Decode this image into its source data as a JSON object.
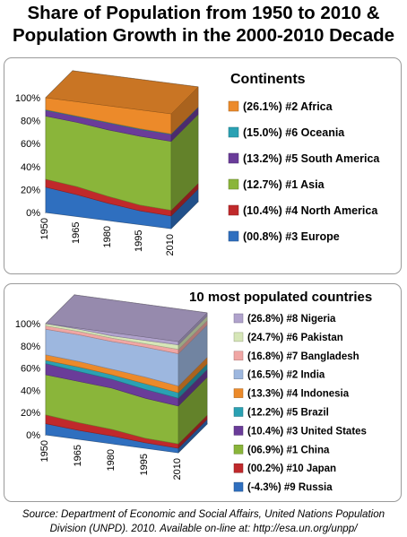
{
  "page": {
    "title_line1": "Share of Population from 1950 to 2010 &",
    "title_line2": "Population Growth in the 2000-2010 Decade",
    "source_line1": "Source: Department of Economic and Social Affairs, United Nations Population",
    "source_line2": "Division (UNPD). 2010. Available on-line at: http://esa.un.org/unpp/"
  },
  "chart_data": [
    {
      "type": "area",
      "title": "Continents",
      "x": [
        "1950",
        "1965",
        "1980",
        "1995",
        "2010"
      ],
      "ylim": [
        0,
        100
      ],
      "yticks": [
        "0%",
        "20%",
        "40%",
        "60%",
        "80%",
        "100%"
      ],
      "grid": true,
      "stacked": "100%",
      "view": "3d",
      "legend_position": "right",
      "series": [
        {
          "name": "#3 Europe",
          "growth": "(00.8%)",
          "color": "#2f6fbf",
          "values": [
            22,
            19,
            15,
            12,
            11
          ]
        },
        {
          "name": "#4 North America",
          "growth": "(10.4%)",
          "color": "#c0292b",
          "values": [
            7,
            7,
            6,
            5,
            5
          ]
        },
        {
          "name": "#1 Asia",
          "growth": "(12.7%)",
          "color": "#8ab53a",
          "values": [
            55,
            56,
            58,
            60,
            60
          ]
        },
        {
          "name": "#5 South America",
          "growth": "(13.2%)",
          "color": "#6a3c99",
          "values": [
            5,
            5,
            6,
            6,
            6
          ]
        },
        {
          "name": "#6 Oceania",
          "growth": "(15.0%)",
          "color": "#2aa1b3",
          "values": [
            0.5,
            0.5,
            0.5,
            0.5,
            0.5
          ]
        },
        {
          "name": "#2 Africa",
          "growth": "(26.1%)",
          "color": "#ec8a2a",
          "values": [
            10.5,
            12.5,
            14.5,
            16.5,
            17.5
          ]
        }
      ]
    },
    {
      "type": "area",
      "title": "10 most populated countries",
      "x": [
        "1950",
        "1965",
        "1980",
        "1995",
        "2010"
      ],
      "ylim": [
        0,
        100
      ],
      "yticks": [
        "0%",
        "20%",
        "40%",
        "60%",
        "80%",
        "100%"
      ],
      "grid": true,
      "stacked": "100%",
      "view": "3d",
      "legend_position": "right",
      "series": [
        {
          "name": "#9 Russia",
          "growth": "(-4.3%)",
          "color": "#2f6fbf",
          "values": [
            10,
            8,
            7,
            5,
            4
          ]
        },
        {
          "name": "#10 Japan",
          "growth": "(00.2%)",
          "color": "#c0292b",
          "values": [
            8,
            7,
            6,
            4,
            4
          ]
        },
        {
          "name": "#1 China",
          "growth": "(06.9%)",
          "color": "#8ab53a",
          "values": [
            36,
            37,
            37,
            36,
            34
          ]
        },
        {
          "name": "#3 United States",
          "growth": "(10.4%)",
          "color": "#6a3c99",
          "values": [
            10,
            9,
            8,
            8,
            7
          ]
        },
        {
          "name": "#5 Brazil",
          "growth": "(12.2%)",
          "color": "#2aa1b3",
          "values": [
            3,
            4,
            4,
            5,
            5
          ]
        },
        {
          "name": "#4 Indonesia",
          "growth": "(13.3%)",
          "color": "#ec8a2a",
          "values": [
            5,
            5,
            5,
            6,
            6
          ]
        },
        {
          "name": "#2 India",
          "growth": "(16.5%)",
          "color": "#9db7df",
          "values": [
            23,
            24,
            25,
            27,
            29
          ]
        },
        {
          "name": "#7 Bangladesh",
          "growth": "(16.8%)",
          "color": "#f0a6a4",
          "values": [
            3,
            3,
            3,
            3,
            4
          ]
        },
        {
          "name": "#6 Pakistan",
          "growth": "(24.7%)",
          "color": "#d6e6b7",
          "values": [
            2,
            2,
            2,
            3,
            4
          ]
        },
        {
          "name": "#8 Nigeria",
          "growth": "(26.8%)",
          "color": "#b0a2cc",
          "values": [
            0,
            1,
            3,
            3,
            3
          ]
        }
      ]
    }
  ]
}
